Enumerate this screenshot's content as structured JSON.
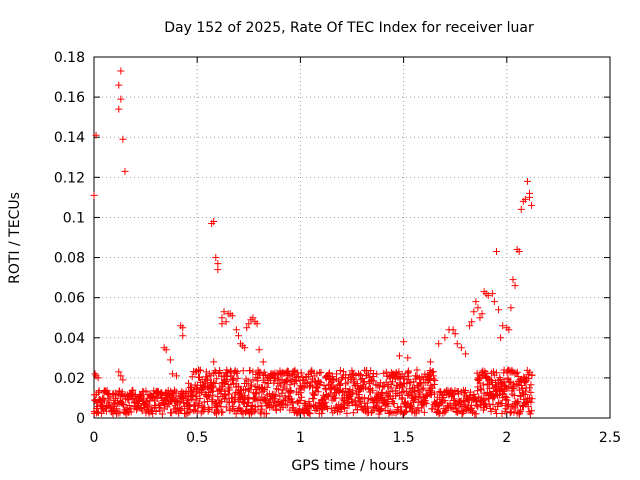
{
  "chart_data": {
    "type": "scatter",
    "title": "Day 152 of 2025, Rate Of TEC Index for receiver luar",
    "xlabel": "GPS time / hours",
    "ylabel": "ROTI / TECUs",
    "xlim": [
      0,
      2.5
    ],
    "ylim": [
      0,
      0.18
    ],
    "xticks": [
      0,
      0.5,
      1,
      1.5,
      2,
      2.5
    ],
    "yticks": [
      0,
      0.02,
      0.04,
      0.06,
      0.08,
      0.1,
      0.12,
      0.14,
      0.16,
      0.18
    ],
    "xtick_labels": [
      "0",
      "0.5",
      "1",
      "1.5",
      "2",
      "2.5"
    ],
    "ytick_labels": [
      "0",
      "0.02",
      "0.04",
      "0.06",
      "0.08",
      "0.1",
      "0.12",
      "0.14",
      "0.16",
      "0.18"
    ],
    "grid": true,
    "marker": "plus",
    "color": "#ff0000",
    "series": [
      {
        "name": "ROTI",
        "points": [
          [
            0.0,
            0.111
          ],
          [
            0.01,
            0.141
          ],
          [
            0.005,
            0.022
          ],
          [
            0.01,
            0.021
          ],
          [
            0.02,
            0.02
          ],
          [
            0.12,
            0.154
          ],
          [
            0.12,
            0.166
          ],
          [
            0.13,
            0.173
          ],
          [
            0.13,
            0.159
          ],
          [
            0.14,
            0.139
          ],
          [
            0.15,
            0.123
          ],
          [
            0.12,
            0.023
          ],
          [
            0.13,
            0.021
          ],
          [
            0.14,
            0.019
          ],
          [
            0.34,
            0.035
          ],
          [
            0.35,
            0.034
          ],
          [
            0.37,
            0.029
          ],
          [
            0.38,
            0.022
          ],
          [
            0.4,
            0.021
          ],
          [
            0.42,
            0.046
          ],
          [
            0.43,
            0.045
          ],
          [
            0.43,
            0.041
          ],
          [
            0.57,
            0.097
          ],
          [
            0.58,
            0.098
          ],
          [
            0.58,
            0.028
          ],
          [
            0.59,
            0.08
          ],
          [
            0.6,
            0.077
          ],
          [
            0.6,
            0.074
          ],
          [
            0.62,
            0.05
          ],
          [
            0.62,
            0.047
          ],
          [
            0.63,
            0.053
          ],
          [
            0.64,
            0.048
          ],
          [
            0.65,
            0.052
          ],
          [
            0.66,
            0.052
          ],
          [
            0.67,
            0.051
          ],
          [
            0.69,
            0.044
          ],
          [
            0.7,
            0.041
          ],
          [
            0.71,
            0.037
          ],
          [
            0.72,
            0.036
          ],
          [
            0.73,
            0.035
          ],
          [
            0.74,
            0.045
          ],
          [
            0.75,
            0.047
          ],
          [
            0.76,
            0.049
          ],
          [
            0.77,
            0.05
          ],
          [
            0.78,
            0.048
          ],
          [
            0.79,
            0.047
          ],
          [
            0.8,
            0.034
          ],
          [
            0.82,
            0.028
          ],
          [
            1.5,
            0.038
          ],
          [
            1.48,
            0.031
          ],
          [
            1.52,
            0.03
          ],
          [
            1.63,
            0.028
          ],
          [
            1.67,
            0.037
          ],
          [
            1.7,
            0.04
          ],
          [
            1.72,
            0.044
          ],
          [
            1.74,
            0.044
          ],
          [
            1.75,
            0.042
          ],
          [
            1.76,
            0.037
          ],
          [
            1.78,
            0.035
          ],
          [
            1.8,
            0.032
          ],
          [
            1.82,
            0.046
          ],
          [
            1.83,
            0.048
          ],
          [
            1.84,
            0.053
          ],
          [
            1.85,
            0.058
          ],
          [
            1.86,
            0.055
          ],
          [
            1.87,
            0.05
          ],
          [
            1.88,
            0.052
          ],
          [
            1.89,
            0.063
          ],
          [
            1.9,
            0.062
          ],
          [
            1.91,
            0.061
          ],
          [
            1.93,
            0.062
          ],
          [
            1.94,
            0.058
          ],
          [
            1.95,
            0.083
          ],
          [
            1.96,
            0.054
          ],
          [
            1.97,
            0.04
          ],
          [
            1.98,
            0.046
          ],
          [
            2.0,
            0.045
          ],
          [
            2.01,
            0.044
          ],
          [
            2.02,
            0.055
          ],
          [
            2.03,
            0.069
          ],
          [
            2.04,
            0.066
          ],
          [
            2.05,
            0.084
          ],
          [
            2.06,
            0.083
          ],
          [
            2.07,
            0.104
          ],
          [
            2.08,
            0.108
          ],
          [
            2.09,
            0.109
          ],
          [
            2.1,
            0.118
          ],
          [
            2.11,
            0.11
          ],
          [
            2.12,
            0.106
          ],
          [
            2.11,
            0.112
          ]
        ]
      }
    ]
  }
}
